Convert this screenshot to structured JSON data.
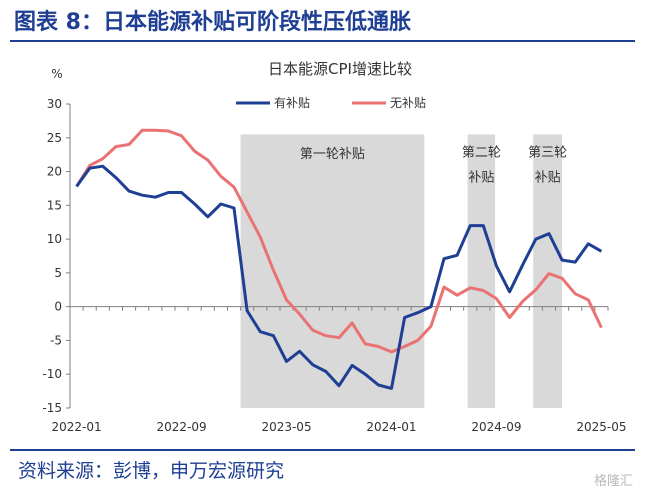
{
  "figure_title": "图表 8：日本能源补贴可阶段性压低通胀",
  "source_text": "资料来源：彭博，申万宏源研究",
  "watermark": "格隆汇",
  "colors": {
    "title": "#1f3f94",
    "subsidy_band": "#d9d9d9",
    "with_subsidy": "#1f3f94",
    "without_subsidy": "#ea7272"
  },
  "chart_data": {
    "type": "line",
    "title": "日本能源CPI增速比较",
    "ylabel": "%",
    "ylim": [
      -15,
      30
    ],
    "yticks": [
      -15,
      -10,
      -5,
      0,
      5,
      10,
      15,
      20,
      25,
      30
    ],
    "x": [
      "2022-01",
      "2022-02",
      "2022-03",
      "2022-04",
      "2022-05",
      "2022-06",
      "2022-07",
      "2022-08",
      "2022-09",
      "2022-10",
      "2022-11",
      "2022-12",
      "2023-01",
      "2023-02",
      "2023-03",
      "2023-04",
      "2023-05",
      "2023-06",
      "2023-07",
      "2023-08",
      "2023-09",
      "2023-10",
      "2023-11",
      "2023-12",
      "2024-01",
      "2024-02",
      "2024-03",
      "2024-04",
      "2024-05",
      "2024-06",
      "2024-07",
      "2024-08",
      "2024-09",
      "2024-10",
      "2024-11",
      "2024-12",
      "2025-01",
      "2025-02",
      "2025-03",
      "2025-04",
      "2025-05"
    ],
    "xtick_labels": [
      "2022-01",
      "2022-09",
      "2023-05",
      "2024-01",
      "2024-09",
      "2025-05"
    ],
    "legend_position": "top-center",
    "series": [
      {
        "name": "有补贴",
        "color": "#1f3f94",
        "values": [
          17.8,
          20.5,
          20.8,
          19.1,
          17.1,
          16.5,
          16.2,
          16.9,
          16.9,
          15.2,
          13.3,
          15.2,
          14.6,
          -0.6,
          -3.7,
          -4.3,
          -8.1,
          -6.6,
          -8.6,
          -9.6,
          -11.7,
          -8.7,
          -10.0,
          -11.6,
          -12.1,
          -1.6,
          -0.9,
          0.0,
          7.1,
          7.6,
          12.0,
          12.0,
          6.0,
          2.2,
          6.2,
          10.0,
          10.8,
          6.9,
          6.6,
          9.3,
          8.2
        ]
      },
      {
        "name": "无补贴",
        "color": "#ea7272",
        "values": [
          17.8,
          20.9,
          21.9,
          23.7,
          24.0,
          26.1,
          26.1,
          26.0,
          25.3,
          23.0,
          21.7,
          19.3,
          17.7,
          14.0,
          10.3,
          5.4,
          1.0,
          -1.1,
          -3.5,
          -4.3,
          -4.6,
          -2.4,
          -5.5,
          -5.9,
          -6.7,
          -5.9,
          -5.0,
          -2.9,
          2.9,
          1.7,
          2.8,
          2.4,
          1.2,
          -1.6,
          0.8,
          2.5,
          4.9,
          4.2,
          1.9,
          1.0,
          -3.1
        ]
      }
    ],
    "shaded_periods": [
      {
        "label": "第一轮补贴",
        "start_index": 12.5,
        "end_index": 26.5
      },
      {
        "label": "第二轮补贴",
        "start_index": 29.8,
        "end_index": 31.9
      },
      {
        "label": "第三轮补贴",
        "start_index": 34.8,
        "end_index": 37.0
      }
    ]
  }
}
